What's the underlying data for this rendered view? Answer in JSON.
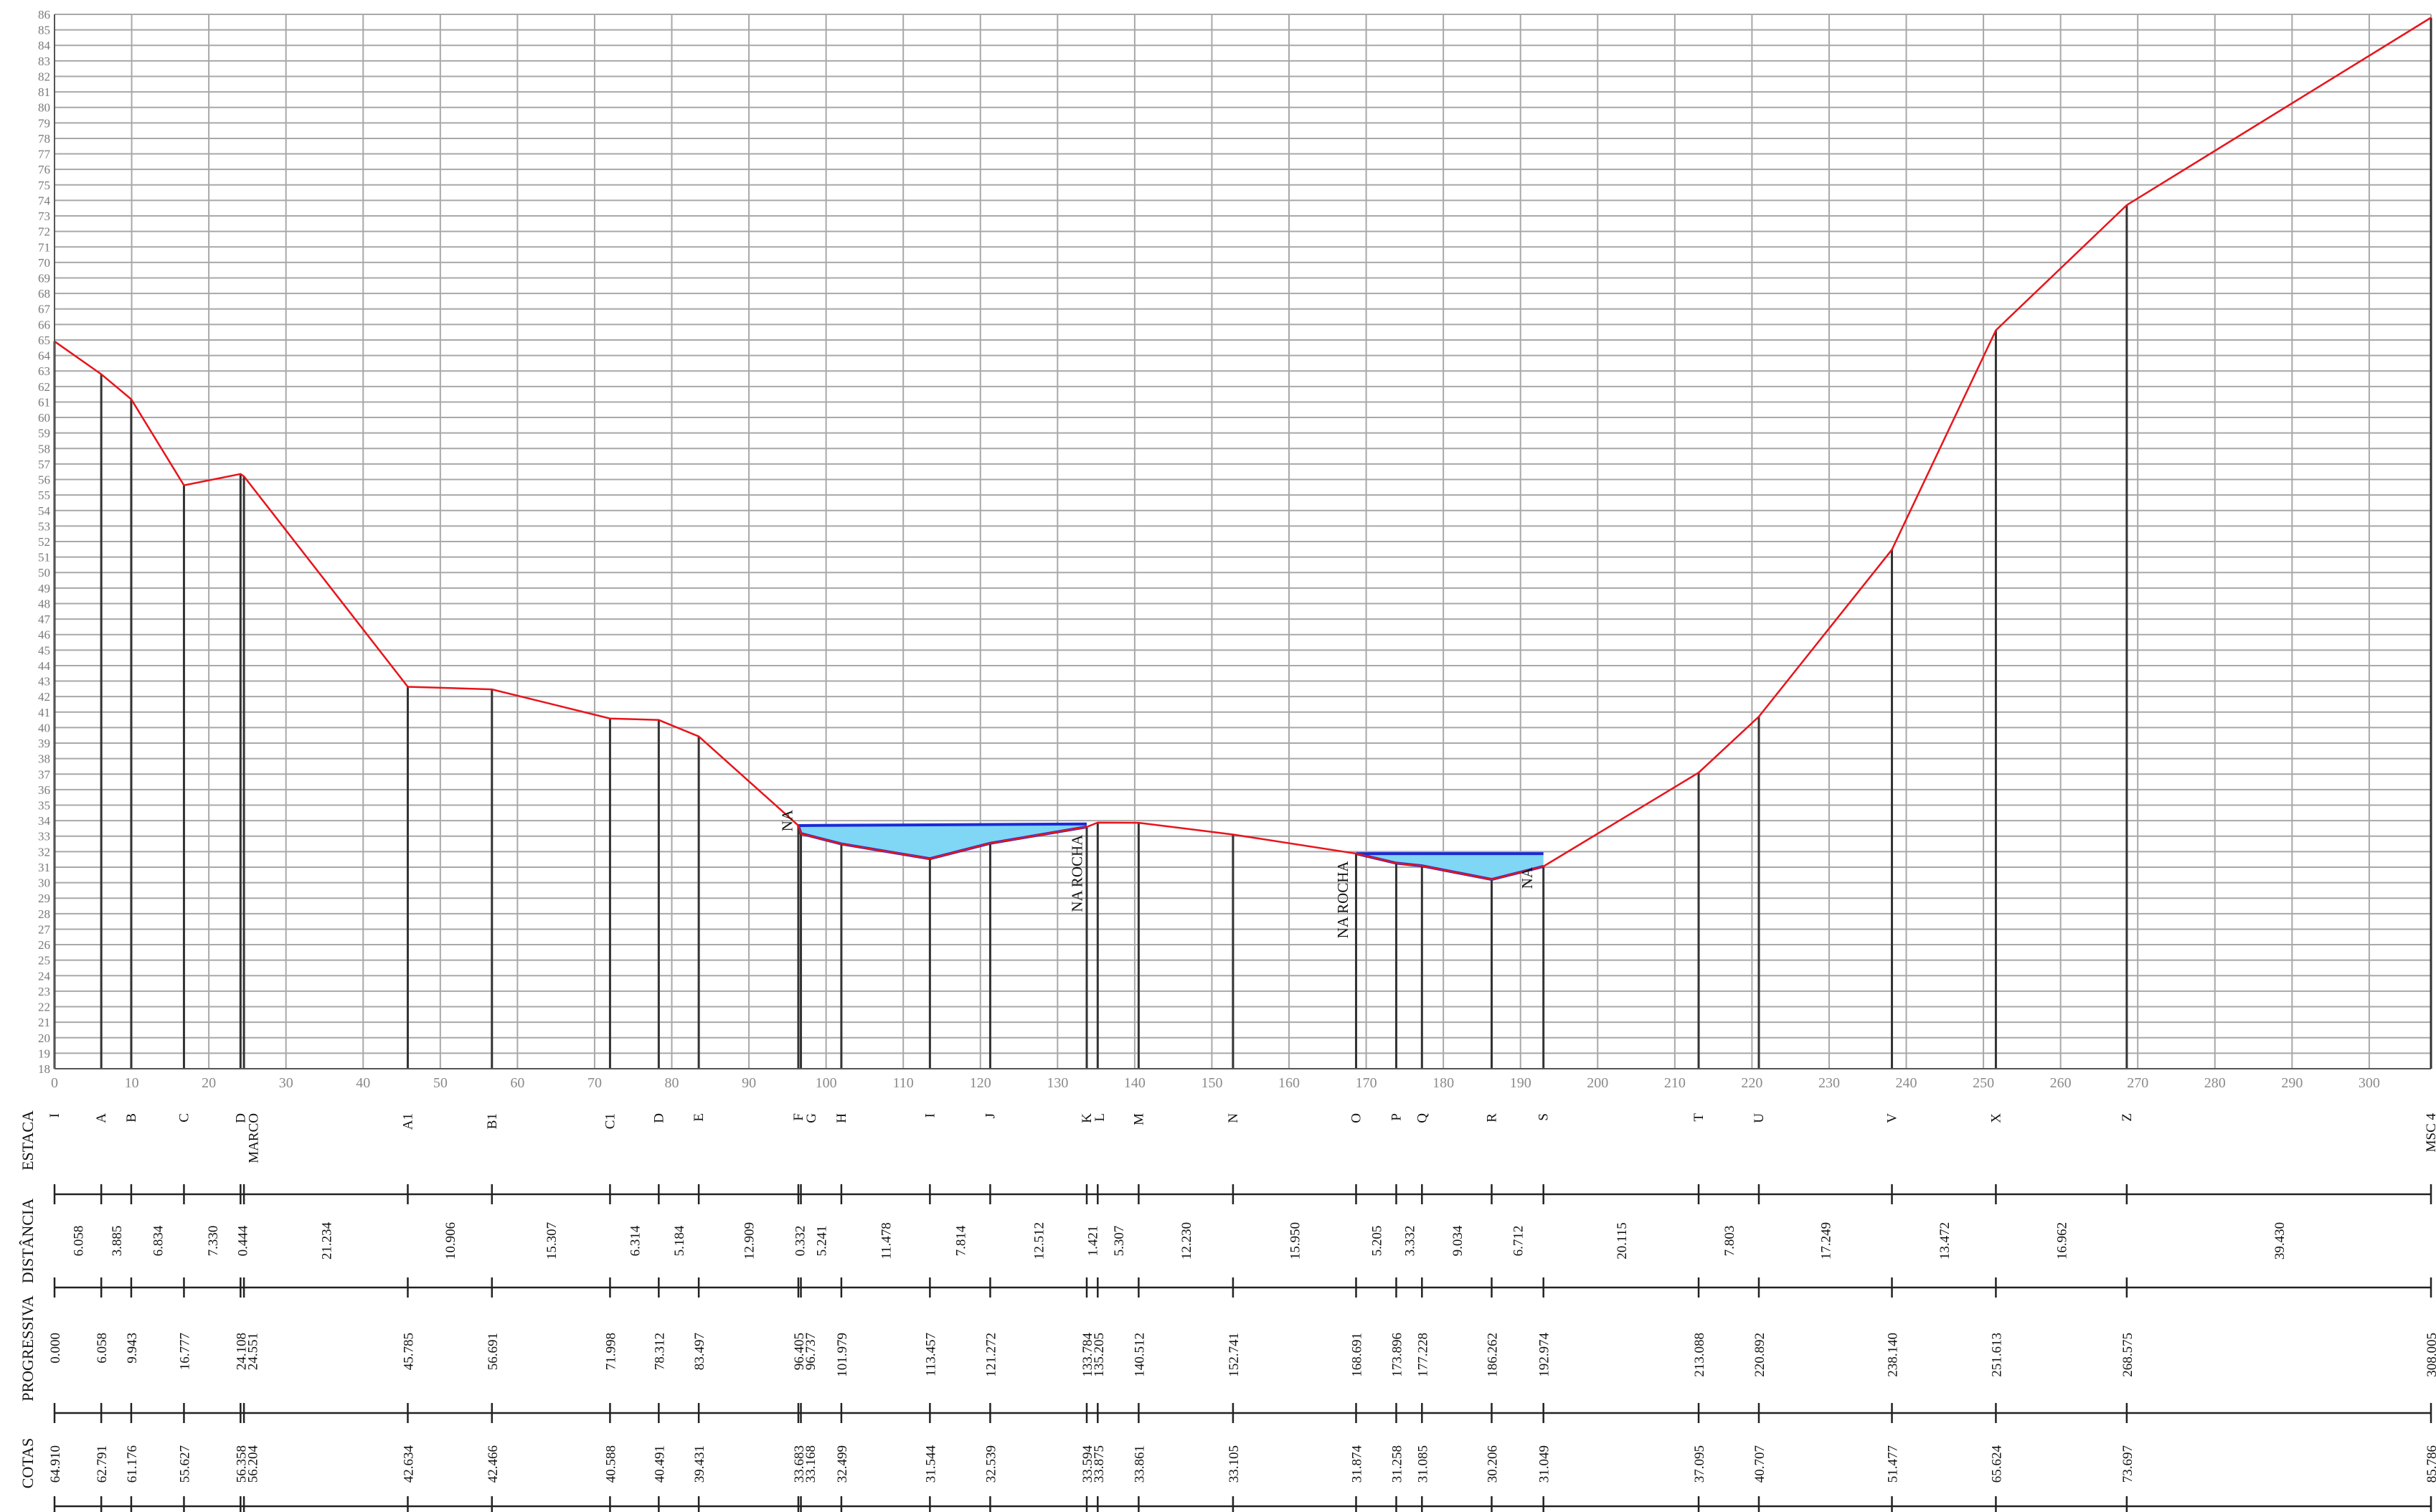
{
  "chart_data": {
    "type": "line",
    "title": "",
    "xlabel": "",
    "ylabel": "",
    "xlim": [
      0,
      308.005
    ],
    "ylim": [
      18,
      86
    ],
    "x_ticks": [
      0,
      10,
      20,
      30,
      40,
      50,
      60,
      70,
      80,
      90,
      100,
      110,
      120,
      130,
      140,
      150,
      160,
      170,
      180,
      190,
      200,
      210,
      220,
      230,
      240,
      250,
      260,
      270,
      280,
      290,
      300
    ],
    "y_ticks": [
      18,
      19,
      20,
      21,
      22,
      23,
      24,
      25,
      26,
      27,
      28,
      29,
      30,
      31,
      32,
      33,
      34,
      35,
      36,
      37,
      38,
      39,
      40,
      41,
      42,
      43,
      44,
      45,
      46,
      47,
      48,
      49,
      50,
      51,
      52,
      53,
      54,
      55,
      56,
      57,
      58,
      59,
      60,
      61,
      62,
      63,
      64,
      65,
      66,
      67,
      68,
      69,
      70,
      71,
      72,
      73,
      74,
      75,
      76,
      77,
      78,
      79,
      80,
      81,
      82,
      83,
      84,
      85,
      86
    ],
    "grid": true,
    "colors": {
      "profile": "#e8141b",
      "water_fill": "#7fd6f5",
      "water_edge": "#1a2ad6",
      "station_line": "#333333",
      "grid": "#a8a8a8"
    },
    "series": [
      {
        "x": [
          0.0,
          6.058,
          9.943,
          16.777,
          24.108,
          24.551,
          45.785,
          56.691,
          71.998,
          78.312,
          83.497,
          96.405,
          96.737,
          101.979,
          113.457,
          121.272,
          133.784,
          135.205,
          140.512,
          152.741,
          168.691,
          173.896,
          177.228,
          186.262,
          192.974,
          213.088,
          220.892,
          238.14,
          251.613,
          268.575,
          308.005
        ],
        "y": [
          64.91,
          62.791,
          61.176,
          55.627,
          56.358,
          56.204,
          42.634,
          42.466,
          40.588,
          40.491,
          39.431,
          33.683,
          33.168,
          32.499,
          31.544,
          32.539,
          33.594,
          33.875,
          33.861,
          33.105,
          31.874,
          31.258,
          31.085,
          30.206,
          31.049,
          37.095,
          40.707,
          51.477,
          65.624,
          73.697,
          85.786
        ]
      }
    ],
    "water_areas": [
      {
        "x": [
          96.405,
          96.737,
          101.979,
          113.457,
          121.272,
          133.784
        ],
        "bed": [
          33.683,
          33.168,
          32.499,
          31.544,
          32.539,
          33.594
        ],
        "na_level_left": 33.683,
        "na_level_right": 33.784
      },
      {
        "x": [
          168.691,
          173.896,
          177.228,
          186.262,
          192.974
        ],
        "bed": [
          31.874,
          31.258,
          31.085,
          30.206,
          31.049
        ],
        "na_level_left": 31.874,
        "na_level_right": 31.874
      }
    ],
    "annotations": [
      {
        "text": "NA",
        "x": 95.6,
        "y": 34.0
      },
      {
        "text": "NA ROCHA",
        "x": 133.2,
        "y": 30.6
      },
      {
        "text": "NA ROCHA",
        "x": 167.6,
        "y": 28.9
      },
      {
        "text": "NA",
        "x": 191.5,
        "y": 30.3
      }
    ],
    "table": {
      "row_labels": [
        "ESTACA",
        "DISTÂNCIA",
        "PROGRESSIVA",
        "COTAS"
      ],
      "stations": [
        {
          "x": 0.0,
          "estaca": "I",
          "progressiva": "0.000",
          "cota": "64.910"
        },
        {
          "x": 6.058,
          "estaca": "A",
          "progressiva": "6.058",
          "cota": "62.791"
        },
        {
          "x": 9.943,
          "estaca": "B",
          "progressiva": "9.943",
          "cota": "61.176"
        },
        {
          "x": 16.777,
          "estaca": "C",
          "progressiva": "16.777",
          "cota": "55.627"
        },
        {
          "x": 24.108,
          "estaca": "D",
          "progressiva": "24.108",
          "cota": "56.358"
        },
        {
          "x": 24.551,
          "estaca": "MARCO",
          "progressiva": "24.551",
          "cota": "56.204"
        },
        {
          "x": 45.785,
          "estaca": "A1",
          "progressiva": "45.785",
          "cota": "42.634"
        },
        {
          "x": 56.691,
          "estaca": "B1",
          "progressiva": "56.691",
          "cota": "42.466"
        },
        {
          "x": 71.998,
          "estaca": "C1",
          "progressiva": "71.998",
          "cota": "40.588"
        },
        {
          "x": 78.312,
          "estaca": "D",
          "progressiva": "78.312",
          "cota": "40.491"
        },
        {
          "x": 83.497,
          "estaca": "E",
          "progressiva": "83.497",
          "cota": "39.431"
        },
        {
          "x": 96.405,
          "estaca": "F",
          "progressiva": "96.405",
          "cota": "33.683"
        },
        {
          "x": 96.737,
          "estaca": "G",
          "progressiva": "96.737",
          "cota": "33.168"
        },
        {
          "x": 101.979,
          "estaca": "H",
          "progressiva": "101.979",
          "cota": "32.499"
        },
        {
          "x": 113.457,
          "estaca": "I",
          "progressiva": "113.457",
          "cota": "31.544"
        },
        {
          "x": 121.272,
          "estaca": "J",
          "progressiva": "121.272",
          "cota": "32.539"
        },
        {
          "x": 133.784,
          "estaca": "K",
          "progressiva": "133.784",
          "cota": "33.594"
        },
        {
          "x": 135.205,
          "estaca": "L",
          "progressiva": "135.205",
          "cota": "33.875"
        },
        {
          "x": 140.512,
          "estaca": "M",
          "progressiva": "140.512",
          "cota": "33.861"
        },
        {
          "x": 152.741,
          "estaca": "N",
          "progressiva": "152.741",
          "cota": "33.105"
        },
        {
          "x": 168.691,
          "estaca": "O",
          "progressiva": "168.691",
          "cota": "31.874"
        },
        {
          "x": 173.896,
          "estaca": "P",
          "progressiva": "173.896",
          "cota": "31.258"
        },
        {
          "x": 177.228,
          "estaca": "Q",
          "progressiva": "177.228",
          "cota": "31.085"
        },
        {
          "x": 186.262,
          "estaca": "R",
          "progressiva": "186.262",
          "cota": "30.206"
        },
        {
          "x": 192.974,
          "estaca": "S",
          "progressiva": "192.974",
          "cota": "31.049"
        },
        {
          "x": 213.088,
          "estaca": "T",
          "progressiva": "213.088",
          "cota": "37.095"
        },
        {
          "x": 220.892,
          "estaca": "U",
          "progressiva": "220.892",
          "cota": "40.707"
        },
        {
          "x": 238.14,
          "estaca": "V",
          "progressiva": "238.140",
          "cota": "51.477"
        },
        {
          "x": 251.613,
          "estaca": "X",
          "progressiva": "251.613",
          "cota": "65.624"
        },
        {
          "x": 268.575,
          "estaca": "Z",
          "progressiva": "268.575",
          "cota": "73.697"
        },
        {
          "x": 308.005,
          "estaca": "MSC 4",
          "progressiva": "308.005",
          "cota": "85.786"
        }
      ],
      "distances": [
        "6.058",
        "3.885",
        "6.834",
        "7.330",
        "0.444",
        "21.234",
        "10.906",
        "15.307",
        "6.314",
        "5.184",
        "12.909",
        "0.332",
        "5.241",
        "11.478",
        "7.814",
        "12.512",
        "1.421",
        "5.307",
        "12.230",
        "15.950",
        "5.205",
        "3.332",
        "9.034",
        "6.712",
        "20.115",
        "7.803",
        "17.249",
        "13.472",
        "16.962",
        "39.430"
      ]
    }
  }
}
